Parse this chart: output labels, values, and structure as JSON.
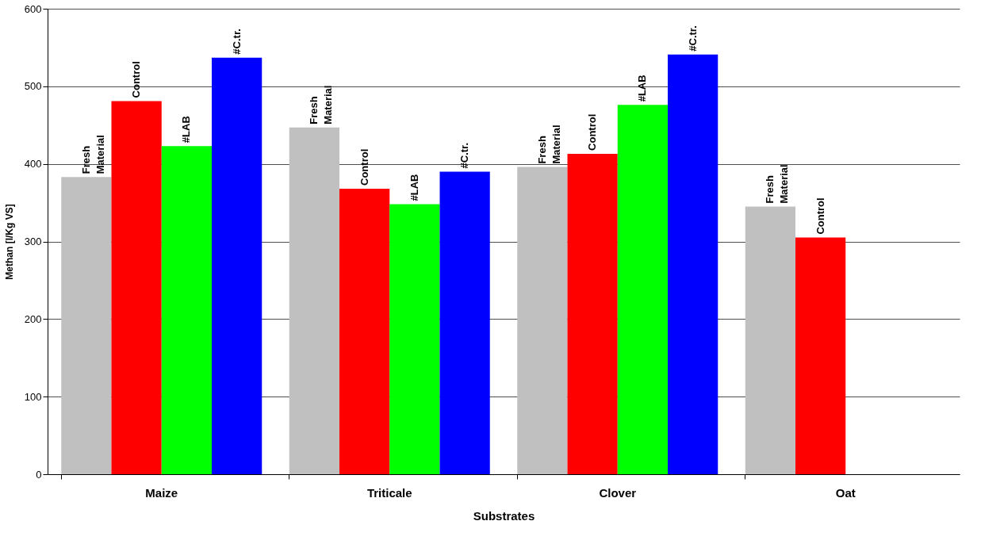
{
  "chart_data": {
    "type": "bar",
    "xlabel": "Substrates",
    "ylabel": "Methan [l/Kg VS]",
    "categories": [
      "Maize",
      "Triticale",
      "Clover",
      "Oat"
    ],
    "series": [
      {
        "name": "Fresh Material",
        "color": "#c0c0c0",
        "values": [
          383,
          447,
          396,
          345
        ]
      },
      {
        "name": "Control",
        "color": "#ff0000",
        "values": [
          481,
          368,
          413,
          305
        ]
      },
      {
        "name": "#LAB",
        "color": "#00ff00",
        "values": [
          423,
          348,
          476,
          null
        ]
      },
      {
        "name": "#C.tr.",
        "color": "#0000ff",
        "values": [
          537,
          390,
          541,
          null
        ]
      }
    ],
    "ylim": [
      0,
      600
    ],
    "yticks": [
      0,
      100,
      200,
      300,
      400,
      500,
      600
    ],
    "grid": "y",
    "legend": false
  }
}
